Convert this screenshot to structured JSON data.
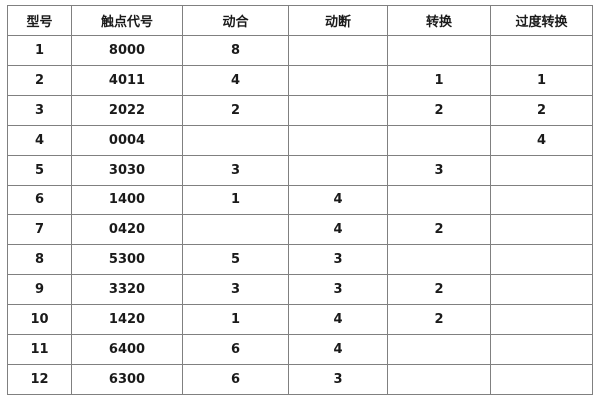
{
  "colors": {
    "border": "#808080",
    "text": "#1a1a1a",
    "background": "#ffffff"
  },
  "table": {
    "columns": [
      {
        "label": "型号"
      },
      {
        "label": "触点代号"
      },
      {
        "label": "动合"
      },
      {
        "label": "动断"
      },
      {
        "label": "转换"
      },
      {
        "label": "过度转换"
      }
    ],
    "rows": [
      {
        "cells": [
          "1",
          "8000",
          "8",
          "",
          "",
          ""
        ]
      },
      {
        "cells": [
          "2",
          "4011",
          "4",
          "",
          "1",
          "1"
        ]
      },
      {
        "cells": [
          "3",
          "2022",
          "2",
          "",
          "2",
          "2"
        ]
      },
      {
        "cells": [
          "4",
          "0004",
          "",
          "",
          "",
          "4"
        ]
      },
      {
        "cells": [
          "5",
          "3030",
          "3",
          "",
          "3",
          ""
        ]
      },
      {
        "cells": [
          "6",
          "1400",
          "1",
          "4",
          "",
          ""
        ]
      },
      {
        "cells": [
          "7",
          "0420",
          "",
          "4",
          "2",
          ""
        ]
      },
      {
        "cells": [
          "8",
          "5300",
          "5",
          "3",
          "",
          ""
        ]
      },
      {
        "cells": [
          "9",
          "3320",
          "3",
          "3",
          "2",
          ""
        ]
      },
      {
        "cells": [
          "10",
          "1420",
          "1",
          "4",
          "2",
          ""
        ]
      },
      {
        "cells": [
          "11",
          "6400",
          "6",
          "4",
          "",
          ""
        ]
      },
      {
        "cells": [
          "12",
          "6300",
          "6",
          "3",
          "",
          ""
        ]
      }
    ]
  }
}
